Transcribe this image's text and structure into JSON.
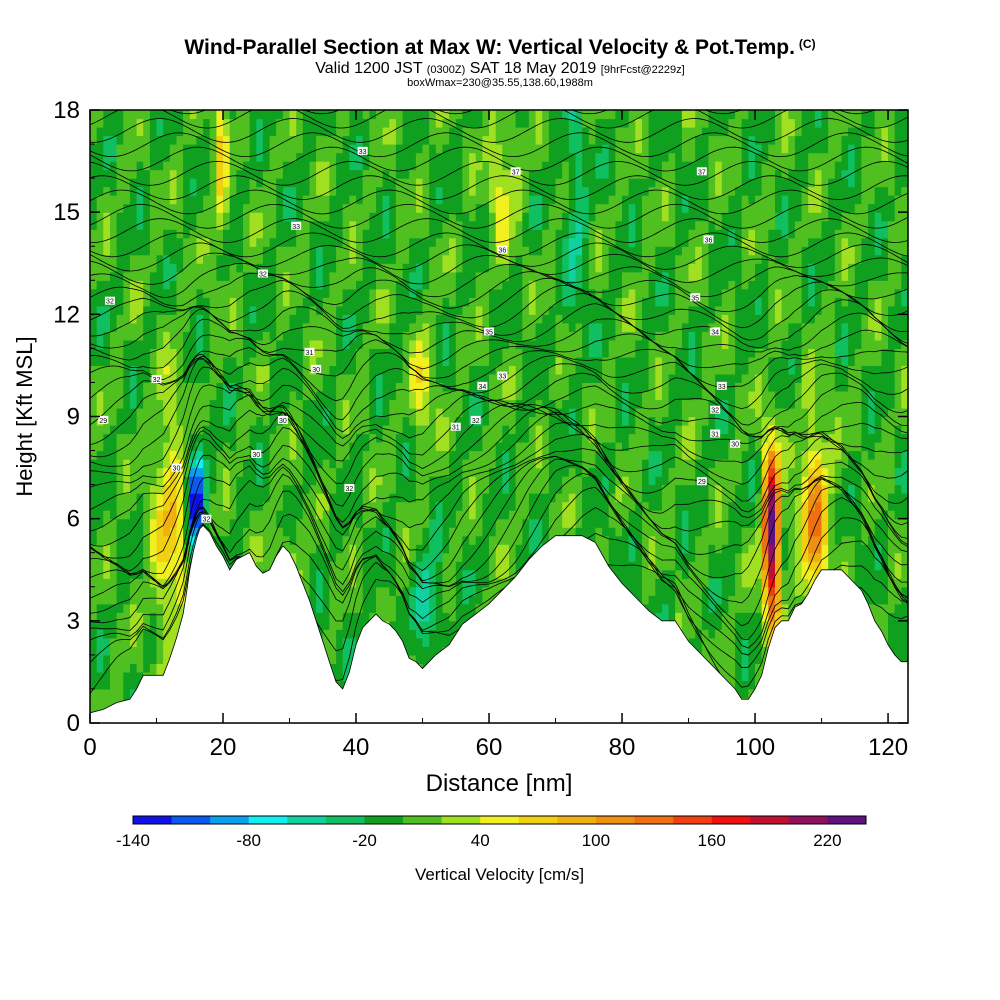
{
  "chart_data": {
    "type": "heatmap",
    "title": {
      "main": "Wind-Parallel Section at Max W: Vertical Velocity & Pot.Temp.",
      "copyright": "(C)",
      "valid_prefix": "Valid 1200 JST",
      "utc": "(0300Z)",
      "valid_date": "SAT 18 May 2019",
      "forecast": "[9hrFcst@2229z]",
      "box": "boxWmax=230@35.55,138.60,1988m"
    },
    "xlabel": "Distance [nm]",
    "ylabel": "Height [Kft MSL]",
    "xlim": [
      0,
      123
    ],
    "ylim": [
      0,
      18
    ],
    "x_ticks": [
      0,
      20,
      40,
      60,
      80,
      100,
      120
    ],
    "y_ticks": [
      0,
      3,
      6,
      9,
      12,
      15,
      18
    ],
    "grid": false,
    "colorbar": {
      "label": "Vertical Velocity [cm/s]",
      "min": -140,
      "step": 20,
      "tick_labels": [
        "-140",
        "-80",
        "-20",
        "40",
        "100",
        "160",
        "220"
      ],
      "colors": [
        "#1010e8",
        "#0a5af0",
        "#0aa0f0",
        "#10f0f0",
        "#10d2a0",
        "#10c060",
        "#10a020",
        "#50c020",
        "#a0e020",
        "#f0f020",
        "#f0d010",
        "#f0b010",
        "#f09010",
        "#f07010",
        "#f04010",
        "#f01010",
        "#c01030",
        "#901060",
        "#601080"
      ]
    },
    "terrain": [
      [
        0,
        0.3
      ],
      [
        2,
        0.4
      ],
      [
        4,
        0.6
      ],
      [
        6,
        0.7
      ],
      [
        7,
        1.0
      ],
      [
        8,
        1.4
      ],
      [
        11,
        1.4
      ],
      [
        12,
        1.9
      ],
      [
        13,
        2.5
      ],
      [
        14,
        3.2
      ],
      [
        14.5,
        3.8
      ],
      [
        15,
        4.5
      ],
      [
        15.5,
        5.0
      ],
      [
        16,
        5.4
      ],
      [
        16.5,
        5.7
      ],
      [
        17,
        5.8
      ],
      [
        18,
        5.6
      ],
      [
        19,
        5.2
      ],
      [
        20,
        4.9
      ],
      [
        21,
        4.5
      ],
      [
        22,
        4.8
      ],
      [
        24,
        5.0
      ],
      [
        25,
        4.6
      ],
      [
        26,
        4.4
      ],
      [
        27,
        4.5
      ],
      [
        28,
        4.9
      ],
      [
        29,
        5.2
      ],
      [
        30,
        5.0
      ],
      [
        31,
        4.6
      ],
      [
        32,
        4.1
      ],
      [
        33,
        3.6
      ],
      [
        34,
        3.0
      ],
      [
        35,
        2.4
      ],
      [
        36,
        1.8
      ],
      [
        37,
        1.2
      ],
      [
        38,
        1.0
      ],
      [
        39,
        1.5
      ],
      [
        40,
        2.3
      ],
      [
        41,
        2.8
      ],
      [
        42,
        3.0
      ],
      [
        43,
        3.2
      ],
      [
        44,
        3.0
      ],
      [
        45,
        2.9
      ],
      [
        46,
        2.7
      ],
      [
        47,
        2.4
      ],
      [
        48,
        1.9
      ],
      [
        49,
        1.8
      ],
      [
        50,
        1.6
      ],
      [
        51,
        1.8
      ],
      [
        52,
        2.0
      ],
      [
        54,
        2.3
      ],
      [
        56,
        2.9
      ],
      [
        58,
        3.2
      ],
      [
        60,
        3.5
      ],
      [
        62,
        3.9
      ],
      [
        64,
        4.3
      ],
      [
        66,
        4.8
      ],
      [
        68,
        5.2
      ],
      [
        70,
        5.5
      ],
      [
        74,
        5.5
      ],
      [
        76,
        5.3
      ],
      [
        78,
        4.6
      ],
      [
        80,
        4.1
      ],
      [
        82,
        3.7
      ],
      [
        84,
        3.3
      ],
      [
        86,
        3.0
      ],
      [
        88,
        3.0
      ],
      [
        90,
        2.4
      ],
      [
        92,
        2.0
      ],
      [
        94,
        1.6
      ],
      [
        96,
        1.2
      ],
      [
        97,
        1.0
      ],
      [
        98,
        0.7
      ],
      [
        99,
        0.7
      ],
      [
        100,
        1.0
      ],
      [
        101,
        1.4
      ],
      [
        102,
        2.2
      ],
      [
        103,
        2.8
      ],
      [
        104,
        3.0
      ],
      [
        105,
        3.0
      ],
      [
        106,
        3.4
      ],
      [
        107,
        3.5
      ],
      [
        108,
        3.8
      ],
      [
        109,
        4.2
      ],
      [
        110,
        4.5
      ],
      [
        113,
        4.5
      ],
      [
        114,
        4.3
      ],
      [
        116,
        3.9
      ],
      [
        117,
        3.5
      ],
      [
        118,
        3.0
      ],
      [
        119,
        2.7
      ],
      [
        120,
        2.3
      ],
      [
        121,
        2.0
      ],
      [
        122,
        1.8
      ],
      [
        123,
        1.8
      ]
    ],
    "vertical_velocity_features": [
      {
        "x": 102.5,
        "z": 5.5,
        "w": 230,
        "sx": 0.9,
        "sz": 1.8
      },
      {
        "x": 109,
        "z": 6.0,
        "w": 110,
        "sx": 1.5,
        "sz": 1.8
      },
      {
        "x": 12,
        "z": 5.8,
        "w": 70,
        "sx": 1.8,
        "sz": 2.5
      },
      {
        "x": 16,
        "z": 6.5,
        "w": -140,
        "sx": 0.8,
        "sz": 1.2
      },
      {
        "x": 29.5,
        "z": 4.4,
        "w": 55,
        "sx": 1.2,
        "sz": 0.8
      },
      {
        "x": 51,
        "z": 3.6,
        "w": -60,
        "sx": 1.2,
        "sz": 1.0
      },
      {
        "x": 50,
        "z": 10.0,
        "w": 55,
        "sx": 1.0,
        "sz": 1.2
      },
      {
        "x": 62,
        "z": 16.0,
        "w": 45,
        "sx": 1.5,
        "sz": 1.5
      },
      {
        "x": 19.5,
        "z": 16.5,
        "w": 55,
        "sx": 0.8,
        "sz": 2.0
      },
      {
        "x": 73,
        "z": 15.0,
        "w": -40,
        "sx": 1.0,
        "sz": 2.5
      }
    ],
    "theta_labels": [
      {
        "x": 2,
        "z": 8.9,
        "text": "29"
      },
      {
        "x": 13,
        "z": 7.5,
        "text": "30"
      },
      {
        "x": 17.5,
        "z": 6.0,
        "text": "32"
      },
      {
        "x": 25,
        "z": 7.9,
        "text": "30"
      },
      {
        "x": 29,
        "z": 8.9,
        "text": "30"
      },
      {
        "x": 39,
        "z": 6.9,
        "text": "32"
      },
      {
        "x": 34,
        "z": 10.4,
        "text": "30"
      },
      {
        "x": 10,
        "z": 10.1,
        "text": "32"
      },
      {
        "x": 33,
        "z": 10.9,
        "text": "31"
      },
      {
        "x": 3,
        "z": 12.4,
        "text": "32"
      },
      {
        "x": 26,
        "z": 13.2,
        "text": "32"
      },
      {
        "x": 31,
        "z": 14.6,
        "text": "33"
      },
      {
        "x": 41,
        "z": 16.8,
        "text": "33"
      },
      {
        "x": 55,
        "z": 8.7,
        "text": "31"
      },
      {
        "x": 58,
        "z": 8.9,
        "text": "32"
      },
      {
        "x": 59,
        "z": 9.9,
        "text": "34"
      },
      {
        "x": 62,
        "z": 10.2,
        "text": "33"
      },
      {
        "x": 60,
        "z": 11.5,
        "text": "35"
      },
      {
        "x": 62,
        "z": 13.9,
        "text": "36"
      },
      {
        "x": 64,
        "z": 16.2,
        "text": "37"
      },
      {
        "x": 92,
        "z": 16.2,
        "text": "37"
      },
      {
        "x": 93,
        "z": 14.2,
        "text": "36"
      },
      {
        "x": 91,
        "z": 12.5,
        "text": "35"
      },
      {
        "x": 94,
        "z": 11.5,
        "text": "34"
      },
      {
        "x": 95,
        "z": 9.9,
        "text": "33"
      },
      {
        "x": 94,
        "z": 9.2,
        "text": "32"
      },
      {
        "x": 94,
        "z": 8.5,
        "text": "31"
      },
      {
        "x": 97,
        "z": 8.2,
        "text": "30"
      },
      {
        "x": 92,
        "z": 7.1,
        "text": "29"
      }
    ]
  }
}
